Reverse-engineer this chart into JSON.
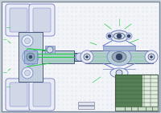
{
  "bg_outer": "#c8d0d8",
  "bg_drawing": "#f2f4f8",
  "border_color": "#99aabb",
  "line_blue": "#7788cc",
  "line_purple": "#8888cc",
  "line_green": "#22cc44",
  "line_dark": "#334466",
  "line_cyan": "#44aacc",
  "fill_light": "#e8ecf4",
  "fill_mid": "#d0d8e8",
  "fill_green_light": "#cceecc",
  "fill_green_dark": "#336633",
  "dot_color": "#99bbdd",
  "fig_w": 2.0,
  "fig_h": 1.41,
  "dpi": 100
}
